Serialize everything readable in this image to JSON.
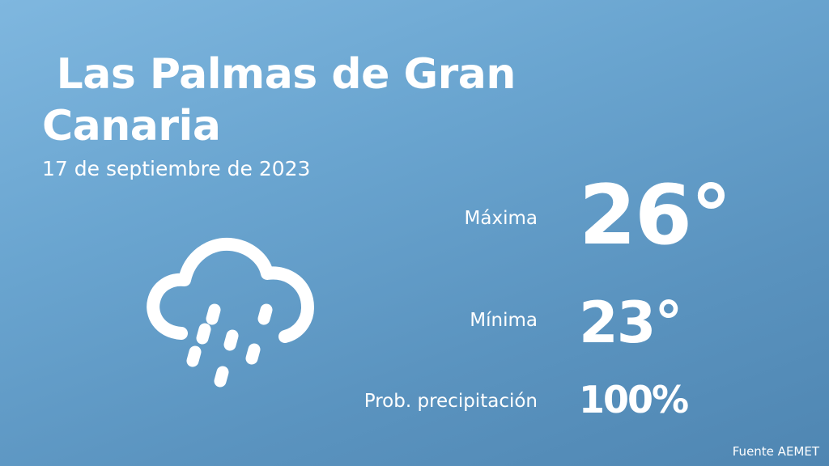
{
  "header": {
    "city": " Las Palmas de Gran\nCanaria",
    "date": "17 de septiembre de 2023"
  },
  "weather": {
    "icon": "rain-cloud-icon",
    "max_label": "Máxima",
    "max_value": "26°",
    "min_label": "Mínima",
    "min_value": "23°",
    "prob_label": "Prob. precipitación",
    "prob_value": "100%"
  },
  "footer": {
    "source": "Fuente AEMET"
  },
  "colors": {
    "background_top": "#7fb7df",
    "background_bottom": "#4f86b2",
    "text": "#ffffff"
  }
}
